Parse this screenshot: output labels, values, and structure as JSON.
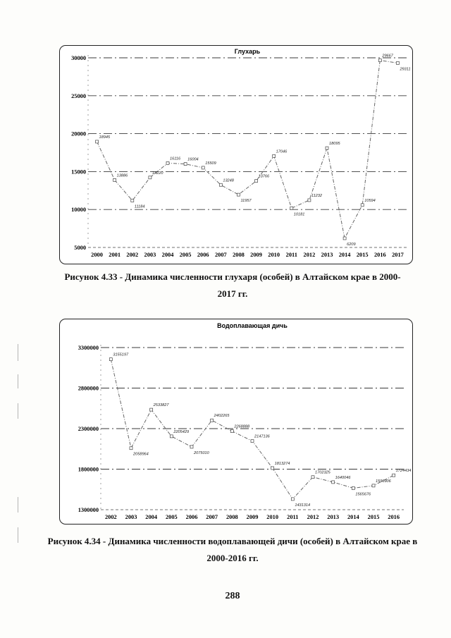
{
  "charts": [
    {
      "title": "Глухарь",
      "caption_line1": "Рисунок 4.33 - Динамика численности глухаря (особей) в Алтайском крае в 2000-",
      "caption_line2": "2017 гг."
    },
    {
      "title": "Водоплавающая дичь",
      "caption_line1": "Рисунок 4.34 - Динамика численности водоплавающей дичи (особей) в Алтайском крае в",
      "caption_line2": "2000-2016 гг."
    }
  ],
  "page_number": "288",
  "chart_data": [
    {
      "type": "line",
      "title": "Глухарь",
      "xlabel": "",
      "ylabel": "",
      "x": [
        "2000",
        "2001",
        "2002",
        "2003",
        "2004",
        "2005",
        "2006",
        "2007",
        "2008",
        "2009",
        "2010",
        "2011",
        "2012",
        "2013",
        "2014",
        "2015",
        "2016",
        "2017"
      ],
      "values": [
        18945,
        13886,
        11184,
        14220,
        16116,
        16004,
        15509,
        13248,
        11957,
        13766,
        17046,
        10181,
        11232,
        18095,
        6209,
        10594,
        29667,
        29311
      ],
      "data_labels": [
        "18945",
        "13886",
        "11184",
        "14220",
        "16116",
        "16004",
        "15509",
        "13248",
        "11957",
        "13766",
        "17046",
        "10181",
        "11232",
        "18095",
        "6209",
        "10594",
        "29667",
        "29311"
      ],
      "yticks": [
        5000,
        10000,
        15000,
        20000,
        25000,
        30000
      ],
      "ytick_labels": [
        "5000",
        "10000",
        "15000",
        "20000",
        "25000",
        "30000"
      ],
      "ylim": [
        5000,
        30000
      ],
      "grid": true,
      "legend": "none",
      "line_color": "#666666"
    },
    {
      "type": "line",
      "title": "Водоплавающая дичь",
      "xlabel": "",
      "ylabel": "",
      "x": [
        "2002",
        "2003",
        "2004",
        "2005",
        "2006",
        "2007",
        "2008",
        "2009",
        "2010",
        "2011",
        "2012",
        "2013",
        "2014",
        "2015",
        "2016"
      ],
      "values": [
        3155197,
        2058964,
        2533827,
        2205429,
        2075010,
        2402265,
        2268888,
        2147136,
        1813274,
        1431314,
        1702325,
        1640046,
        1565676,
        1596906,
        1724434
      ],
      "data_labels": [
        "3155197",
        "2058964",
        "2533827",
        "2205429",
        "2075010",
        "2402265",
        "2268888",
        "2147136",
        "1813274",
        "1431314",
        "1702325",
        "1640046",
        "1565676",
        "1596906",
        "1724434"
      ],
      "yticks": [
        1300000,
        1800000,
        2300000,
        2800000,
        3300000
      ],
      "ytick_labels": [
        "1300000",
        "1800000",
        "2300000",
        "2800000",
        "3300000"
      ],
      "ylim": [
        1300000,
        3300000
      ],
      "grid": true,
      "legend": "none",
      "line_color": "#666666"
    }
  ]
}
